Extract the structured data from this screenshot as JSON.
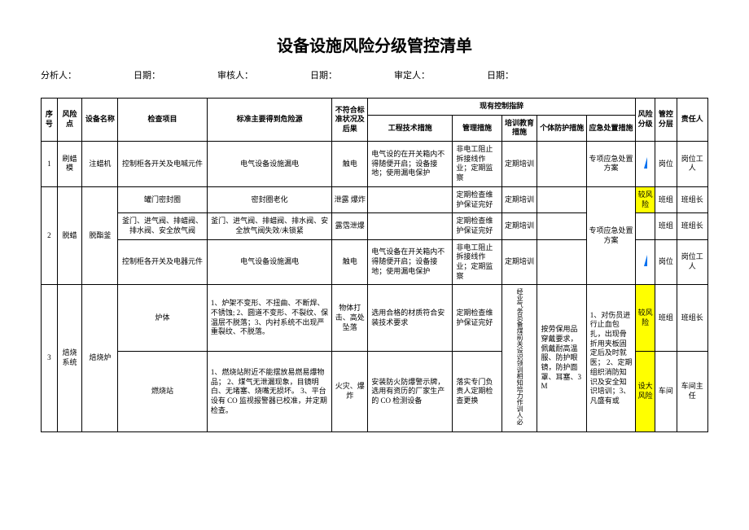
{
  "title": "设备设施风险分级管控清单",
  "meta": {
    "analystLabel": "分析人：",
    "dateLabel": "日期：",
    "auditorLabel": "审核人：",
    "approverLabel": "审定人："
  },
  "headers": {
    "seq": "序号",
    "riskPoint": "风险点",
    "equipName": "设备名称",
    "checkItem": "检查项目",
    "standard": "标准主要得到危险源",
    "nonconform": "不符合标准状况及后果",
    "controlGroup": "现有控制指辞",
    "m1": "工程技术措施",
    "m2": "管理措施",
    "m3": "培训教育措施",
    "m4": "个体防护措施",
    "m5": "应急处置措施",
    "riskLevel": "风险分级",
    "ctrlLayer": "管控分层",
    "responsible": "责任人"
  },
  "rows": [
    {
      "seq": "1",
      "riskPoint": "刷蜡模",
      "equip": "注蜡机",
      "check": "控制柜各开关及电喊元件",
      "std": "电气设备设施漏电",
      "nc": "触电",
      "m1": "电气设的在开关箱内不得随便开启；设备接地；使用漏电保护",
      "m2": "非电工阻止拆接线作业；定期监察",
      "m3": "定期培训",
      "m4": "",
      "m5": "专项应急处置方案",
      "level": "mark",
      "levelText": "",
      "layer": "岗位",
      "resp": "岗位工人"
    },
    {
      "seq": "2",
      "riskPoint": "脱蜡",
      "equip": "脱酯釜",
      "sub": [
        {
          "check": "罐门密封圈",
          "std": "密封圈老化",
          "nc": "泄露\n爆炸",
          "m1": "",
          "m2": "定期检查维护保证完好",
          "m3": "定期培训",
          "m4": "",
          "m5span": true,
          "m5": "专项应急处置方案",
          "level": "hl",
          "levelText": "较风险",
          "layer": "班组",
          "resp": "班组长"
        },
        {
          "check": "釜门、进气阀、排蜡阀、排水阀、安全放气阀",
          "std": "釜门、进气阀、排蜡阀、排水阀、安全放气阀失效/未锁紧",
          "nc": "露霑泄爆",
          "m1": "",
          "m2": "定期检查维护保证完好",
          "m3": "定期培训",
          "m4": "",
          "level": "",
          "levelText": "",
          "layer": "班组",
          "resp": "班组长"
        },
        {
          "check": "控制柜各开关及电器元件",
          "std": "电气设备设施漏电",
          "nc": "触电",
          "m1": "电气设备在开关箱内不得随便开启；设备接地；使用漏电保护",
          "m2": "非电工阻止拆接线作业；定期监察",
          "m3": "定期培训",
          "m4": "",
          "level": "mark",
          "levelText": "",
          "layer": "岗位",
          "resp": "岗位工人"
        }
      ]
    },
    {
      "seq": "3",
      "riskPoint": "焙烧系统",
      "equip": "焙烧炉",
      "sub": [
        {
          "check": "炉体",
          "std": "1、炉架不变形、不扭曲、不断焊、不锈蚀;\n2、圆道不变形、不裂纹、保温层不脱落；3、内衬系统不出现严重裂纹、不脱落。",
          "nc": "物体打击、高处坠落",
          "m1": "选用合格的材质符合安装技术要求",
          "m2": "定期检查维护保证完好",
          "m3span": true,
          "m3": "经业气务员备煤前关设识领训相知培力作训人必",
          "m4": "按劳保用品穿戴要求，佩戴耐高温服、防护眼镜，防护面罩、耳塞、3M",
          "m5": "1、对伤员进行止血包扎，出现骨折用夹板固定后及时就医；\n2、定期组织消防知识及安全知识培训；3、凡盛有或",
          "level": "hl",
          "levelText": "较风险",
          "layer": "班组",
          "resp": "班组长"
        },
        {
          "check": "燃烧站",
          "std": "1、燃烧站附近不能摆放易燃易爆物品；\n2、煤气无泄漏现象，目镜明白、无堵塞、烧嘴无损坏。\n3、平台设有 CO 监视报警器已校准，并定期检查。",
          "nc": "火灾、爆炸",
          "m1": "安装防火防爆警示牌，选用有资历的厂家生产的 CO 检测设备",
          "m2": "落实专门负责人定期检查更换",
          "level": "hl",
          "levelText": "设大风险",
          "layer": "车间",
          "resp": "车间主任"
        }
      ]
    }
  ]
}
